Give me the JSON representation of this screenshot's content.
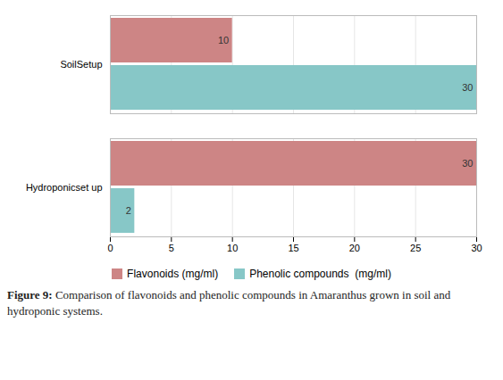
{
  "chart_data": {
    "type": "bar",
    "orientation": "horizontal",
    "caption": "Figure 9: Comparison of flavonoids and phenolic compounds in Amaranthus grown in soil and hydroponic systems.",
    "categories": [
      "SoilSetup",
      "Hydroponicset up"
    ],
    "series": [
      {
        "name": "Flavonoids (mg/ml)",
        "color": "#cd8585",
        "values": [
          10,
          30
        ]
      },
      {
        "name": "Phenolic compounds  (mg/ml)",
        "color": "#87c7c7",
        "values": [
          30,
          2
        ]
      }
    ],
    "xlim": [
      0,
      30
    ],
    "xticks": [
      0,
      5,
      10,
      15,
      20,
      25,
      30
    ],
    "grid": true,
    "legend": "bottom",
    "data_labels": true
  }
}
